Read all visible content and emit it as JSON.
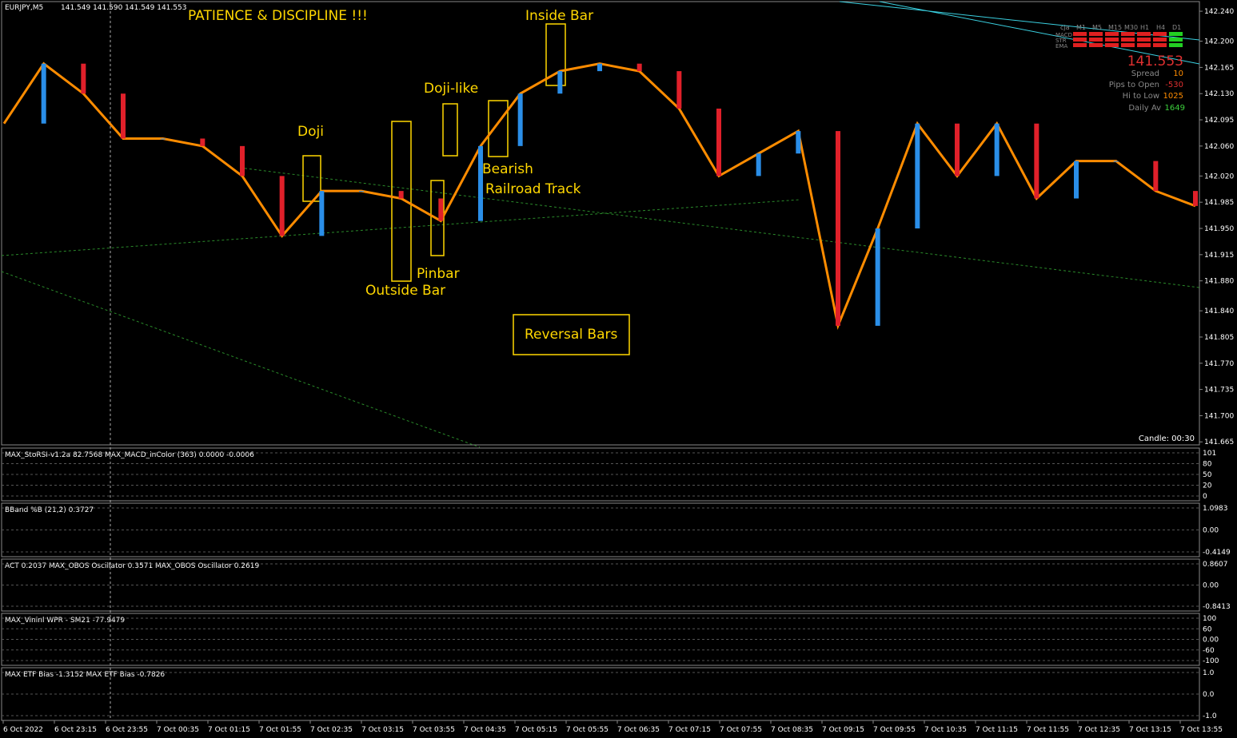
{
  "header": {
    "symbol": "EURJPY,M5",
    "ohlc": "141.549 141.590 141.549 141.553"
  },
  "annotations": {
    "motto": "PATIENCE & DISCIPLINE !!!",
    "inside_bar": "Inside Bar",
    "doji_like": "Doji-like",
    "doji": "Doji",
    "bearish": "Bearish",
    "railroad": "Railroad Track",
    "pinbar": "Pinbar",
    "outside_bar": "Outside Bar",
    "reversal": "Reversal Bars"
  },
  "info_panel": {
    "grid_header": [
      "cja",
      "M1",
      "M5",
      "M15",
      "M30",
      "H1",
      "H4",
      "D1"
    ],
    "grid_rows": [
      "MACD",
      "STR",
      "EMA"
    ],
    "price": "141.553",
    "spread_label": "Spread",
    "spread": "10",
    "pips_label": "Pips to Open",
    "pips": "-530",
    "hilo_label": "Hi to Low",
    "hilo": "1025",
    "daily_label": "Daily Av",
    "daily": "1649",
    "candle": "Candle: 00:30"
  },
  "main_chart": {
    "ylim": [
      141.661,
      142.255
    ],
    "yticks": [
      {
        "value": 142.24,
        "label": "142.240"
      },
      {
        "value": 142.2,
        "label": "142.200"
      },
      {
        "value": 142.165,
        "label": "142.165"
      },
      {
        "value": 142.13,
        "label": "142.130"
      },
      {
        "value": 142.095,
        "label": "142.095"
      },
      {
        "value": 142.06,
        "label": "142.060"
      },
      {
        "value": 142.02,
        "label": "142.020"
      },
      {
        "value": 141.985,
        "label": "141.985"
      },
      {
        "value": 141.95,
        "label": "141.950"
      },
      {
        "value": 141.915,
        "label": "141.915"
      },
      {
        "value": 141.88,
        "label": "141.880"
      },
      {
        "value": 141.84,
        "label": "141.840"
      },
      {
        "value": 141.805,
        "label": "141.805"
      },
      {
        "value": 141.77,
        "label": "141.770"
      },
      {
        "value": 141.735,
        "label": "141.735"
      },
      {
        "value": 141.7,
        "label": "141.700"
      },
      {
        "value": 141.665,
        "label": "141.665"
      }
    ],
    "close": [
      142.09,
      142.17,
      142.13,
      142.07,
      142.07,
      142.06,
      142.02,
      141.94,
      142.0,
      142.0,
      141.99,
      141.96,
      142.06,
      142.13,
      142.16,
      142.17,
      142.16,
      142.11,
      142.02,
      142.05,
      142.08,
      141.82,
      141.95,
      142.09,
      142.02,
      142.09,
      141.99,
      142.04,
      142.04,
      142.0,
      141.98
    ]
  },
  "panels": [
    {
      "title": "MAX_StoRSI-v1.2a 82.7568  MAX_MACD_inColor (363) 0.0000 -0.0006",
      "levels": [
        "101",
        "80",
        "50",
        "20",
        "0"
      ]
    },
    {
      "title": "BBand %B (21,2) 0.3727",
      "levels": [
        "1.0983",
        "0.00",
        "-0.4149"
      ]
    },
    {
      "title": "ACT 0.2037  MAX_OBOS Oscillator 0.3571  MAX_OBOS Oscillator 0.2619",
      "levels": [
        "0.8607",
        "0.00",
        "-0.8413"
      ]
    },
    {
      "title": "MAX_Vininl WPR - SM21 -77.9479",
      "levels": [
        "100",
        "60",
        "0.00",
        "-60",
        "-100"
      ]
    },
    {
      "title": "MAX ETF Bias -1.3152  MAX ETF Bias -0.7826",
      "levels": [
        "1.0",
        "0.0",
        "-1.0"
      ]
    }
  ],
  "time_axis": [
    "6 Oct 2022",
    "6 Oct 23:15",
    "6 Oct 23:55",
    "7 Oct 00:35",
    "7 Oct 01:15",
    "7 Oct 01:55",
    "7 Oct 02:35",
    "7 Oct 03:15",
    "7 Oct 03:55",
    "7 Oct 04:35",
    "7 Oct 05:15",
    "7 Oct 05:55",
    "7 Oct 06:35",
    "7 Oct 07:15",
    "7 Oct 07:55",
    "7 Oct 08:35",
    "7 Oct 09:15",
    "7 Oct 09:55",
    "7 Oct 10:35",
    "7 Oct 11:15",
    "7 Oct 11:55",
    "7 Oct 12:35",
    "7 Oct 13:15",
    "7 Oct 13:55"
  ]
}
